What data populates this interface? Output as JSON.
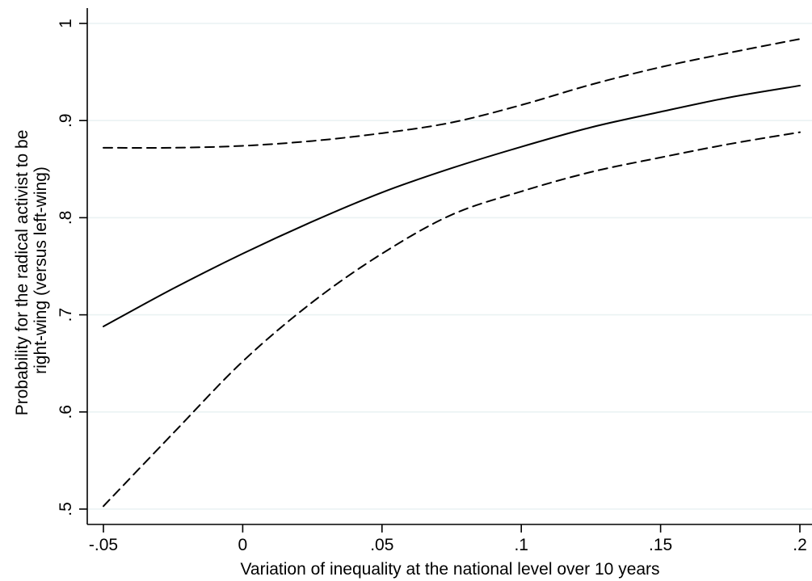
{
  "chart_data": {
    "type": "line",
    "title": "",
    "xlabel": "Variation of inequality at the national level over 10 years",
    "ylabel_lines": [
      "Probability for the radical activist to be",
      "right-wing (versus left-wing)"
    ],
    "xlim": [
      -0.05,
      0.2
    ],
    "ylim": [
      0.5,
      1.0
    ],
    "x_ticks": [
      -0.05,
      0,
      0.05,
      0.1,
      0.15,
      0.2
    ],
    "x_tick_labels": [
      "-.05",
      "0",
      ".05",
      ".1",
      ".15",
      ".2"
    ],
    "y_ticks": [
      0.5,
      0.6,
      0.7,
      0.8,
      0.9,
      1.0
    ],
    "y_tick_labels": [
      ".5",
      ".6",
      ".7",
      ".8",
      ".9",
      "1"
    ],
    "grid": true,
    "legend": "none",
    "series": [
      {
        "style": "solid",
        "color": "#000000",
        "x": [
          -0.05,
          -0.025,
          0,
          0.025,
          0.05,
          0.075,
          0.1,
          0.125,
          0.15,
          0.175,
          0.2
        ],
        "y": [
          0.688,
          0.727,
          0.763,
          0.796,
          0.826,
          0.851,
          0.873,
          0.893,
          0.909,
          0.924,
          0.936
        ]
      },
      {
        "style": "dashed",
        "color": "#000000",
        "x": [
          -0.05,
          -0.025,
          0,
          0.025,
          0.05,
          0.075,
          0.1,
          0.125,
          0.15,
          0.175,
          0.2
        ],
        "y": [
          0.872,
          0.872,
          0.874,
          0.879,
          0.887,
          0.898,
          0.916,
          0.937,
          0.955,
          0.97,
          0.984
        ]
      },
      {
        "style": "dashed",
        "color": "#000000",
        "x": [
          -0.05,
          -0.025,
          0,
          0.025,
          0.05,
          0.075,
          0.1,
          0.125,
          0.15,
          0.175,
          0.2
        ],
        "y": [
          0.503,
          0.578,
          0.652,
          0.713,
          0.763,
          0.803,
          0.827,
          0.847,
          0.862,
          0.876,
          0.888
        ]
      }
    ]
  }
}
